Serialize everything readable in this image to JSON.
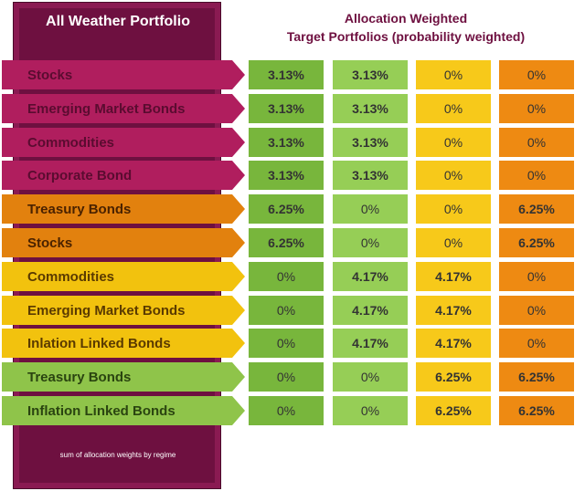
{
  "panel": {
    "title": "All Weather Portfolio",
    "footer": "sum of allocation weights  by regime"
  },
  "heading": {
    "line1": "Allocation Weighted",
    "line2": "Target Portfolios (probability weighted)"
  },
  "colors": {
    "label_magenta": "#b01e5e",
    "label_orange": "#e2810e",
    "label_yellow": "#f2c20e",
    "label_green": "#8fc44a",
    "cell_dark_green": "#78b63c",
    "cell_light_green": "#96ce56",
    "cell_yellow": "#f7c91a",
    "cell_orange": "#ee8a12",
    "panel": "#6e1040"
  },
  "chart_data": {
    "type": "table",
    "columns": 4,
    "rows": [
      {
        "label": "Stocks",
        "group": "magenta",
        "values": [
          "3.13%",
          "3.13%",
          "0%",
          "0%"
        ],
        "bold": [
          true,
          true,
          false,
          false
        ]
      },
      {
        "label": "Emerging Market Bonds",
        "group": "magenta",
        "values": [
          "3.13%",
          "3.13%",
          "0%",
          "0%"
        ],
        "bold": [
          true,
          true,
          false,
          false
        ]
      },
      {
        "label": "Commodities",
        "group": "magenta",
        "values": [
          "3.13%",
          "3.13%",
          "0%",
          "0%"
        ],
        "bold": [
          true,
          true,
          false,
          false
        ]
      },
      {
        "label": "Corporate Bond",
        "group": "magenta",
        "values": [
          "3.13%",
          "3.13%",
          "0%",
          "0%"
        ],
        "bold": [
          true,
          true,
          false,
          false
        ]
      },
      {
        "label": "Treasury Bonds",
        "group": "orange",
        "values": [
          "6.25%",
          "0%",
          "0%",
          "6.25%"
        ],
        "bold": [
          true,
          false,
          false,
          true
        ]
      },
      {
        "label": "Stocks",
        "group": "orange",
        "values": [
          "6.25%",
          "0%",
          "0%",
          "6.25%"
        ],
        "bold": [
          true,
          false,
          false,
          true
        ]
      },
      {
        "label": "Commodities",
        "group": "yellow",
        "values": [
          "0%",
          "4.17%",
          "4.17%",
          "0%"
        ],
        "bold": [
          false,
          true,
          true,
          false
        ]
      },
      {
        "label": "Emerging Market Bonds",
        "group": "yellow",
        "values": [
          "0%",
          "4.17%",
          "4.17%",
          "0%"
        ],
        "bold": [
          false,
          true,
          true,
          false
        ]
      },
      {
        "label": "Inlation Linked Bonds",
        "group": "yellow",
        "values": [
          "0%",
          "4.17%",
          "4.17%",
          "0%"
        ],
        "bold": [
          false,
          true,
          true,
          false
        ]
      },
      {
        "label": "Treasury Bonds",
        "group": "green",
        "values": [
          "0%",
          "0%",
          "6.25%",
          "6.25%"
        ],
        "bold": [
          false,
          false,
          true,
          true
        ]
      },
      {
        "label": "Inflation Linked Bonds",
        "group": "green",
        "values": [
          "0%",
          "0%",
          "6.25%",
          "6.25%"
        ],
        "bold": [
          false,
          false,
          true,
          true
        ]
      }
    ]
  }
}
